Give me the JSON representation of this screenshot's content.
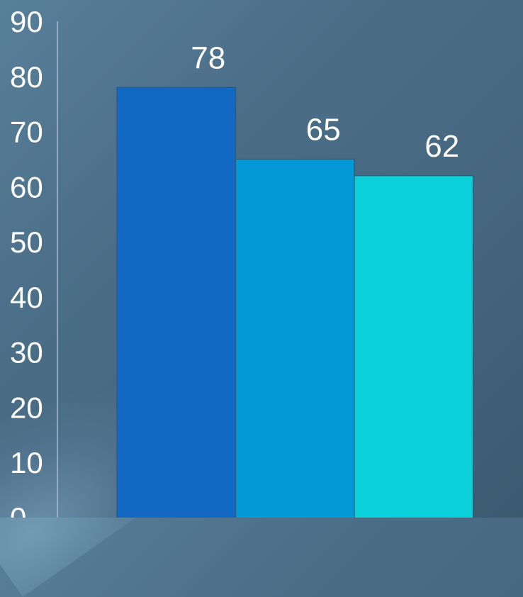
{
  "chart_data": {
    "type": "bar",
    "categories": [
      "",
      "",
      ""
    ],
    "values": [
      78,
      65,
      62
    ],
    "data_labels": [
      "78",
      "65",
      "62"
    ],
    "colors": [
      "#1268c3",
      "#0299d6",
      "#0bcfd9"
    ],
    "ylim": [
      0,
      90
    ],
    "yticks": [
      "0",
      "10",
      "20",
      "30",
      "40",
      "50",
      "60",
      "70",
      "80",
      "90"
    ],
    "grid": false,
    "legend": "none",
    "title": "",
    "xlabel": "",
    "ylabel": ""
  }
}
